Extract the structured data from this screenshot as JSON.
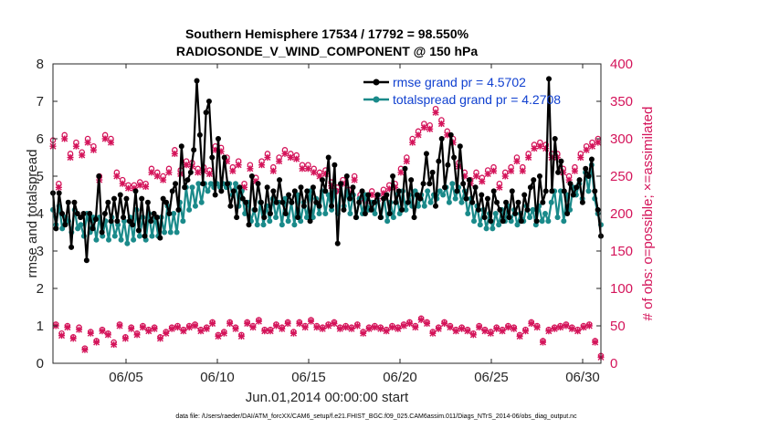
{
  "chart_data": {
    "type": "line",
    "title": "Southern Hemisphere 17534 / 17792 = 98.550%",
    "subtitle": "RADIOSONDE_V_WIND_COMPONENT @ 150 hPa",
    "xlabel": "Jun.01,2014 00:00:00 start",
    "ylabel_left": "rmse and totalspread",
    "ylabel_right": "# of obs: o=possible; ×=assimilated",
    "xlim": [
      1,
      31
    ],
    "ylim_left": [
      0,
      8
    ],
    "ylim_right": [
      0,
      400
    ],
    "x_ticks": [
      5,
      10,
      15,
      20,
      25,
      30
    ],
    "x_tick_labels": [
      "06/05",
      "06/10",
      "06/15",
      "06/20",
      "06/25",
      "06/30"
    ],
    "y_ticks_left": [
      "0",
      "1",
      "2",
      "3",
      "4",
      "5",
      "6",
      "7",
      "8"
    ],
    "y_ticks_right": [
      "0",
      "50",
      "100",
      "150",
      "200",
      "250",
      "300",
      "350",
      "400"
    ],
    "legend": [
      {
        "name": "rmse grand pr = 4.5702",
        "color": "#000000"
      },
      {
        "name": "totalspread grand pr = 4.2708",
        "color": "#1a8a8a"
      }
    ],
    "colors": {
      "rmse": "#000000",
      "spread": "#1a8a8a",
      "obs": "#d4145a"
    },
    "footnote": "data file: /Users/raeder/DAI/ATM_forcXX/CAM6_setup/f.e21.FHIST_BGC.f09_025.CAM6assim.011/Diags_NTrS_2014-06/obs_diag_output.nc",
    "rmse": [
      4.55,
      3.6,
      4.55,
      4.0,
      3.7,
      4.3,
      3.1,
      4.3,
      4.0,
      3.9,
      4.0,
      2.75,
      4.0,
      3.6,
      3.85,
      5.0,
      3.5,
      4.0,
      4.3,
      3.8,
      4.4,
      3.8,
      4.5,
      3.9,
      4.4,
      3.8,
      3.7,
      4.6,
      3.55,
      4.4,
      3.4,
      4.3,
      3.8,
      4.0,
      3.9,
      3.35,
      4.4,
      4.3,
      4.0,
      4.6,
      4.8,
      4.1,
      5.8,
      4.7,
      4.9,
      5.1,
      5.7,
      7.55,
      6.1,
      4.8,
      6.7,
      7.0,
      5.5,
      4.5,
      6.0,
      4.6,
      5.5,
      4.8,
      4.2,
      4.6,
      3.9,
      4.7,
      4.4,
      4.3,
      3.7,
      5.0,
      4.1,
      4.8,
      4.3,
      3.9,
      4.7,
      4.0,
      4.6,
      4.3,
      4.9,
      4.3,
      4.0,
      4.5,
      4.3,
      4.6,
      3.9,
      4.7,
      4.2,
      4.6,
      3.8,
      4.7,
      4.3,
      4.2,
      4.9,
      4.6,
      5.5,
      4.2,
      5.3,
      3.2,
      4.8,
      4.1,
      5.0,
      4.4,
      4.7,
      3.9,
      4.3,
      4.6,
      4.0,
      4.5,
      4.1,
      4.3,
      4.5,
      3.9,
      4.4,
      4.5,
      4.0,
      5.0,
      4.3,
      4.6,
      4.1,
      5.2,
      4.3,
      4.9,
      3.9,
      4.5,
      4.4,
      4.8,
      5.6,
      4.8,
      5.1,
      4.2,
      5.4,
      6.0,
      4.7,
      5.3,
      6.1,
      5.5,
      4.6,
      5.8,
      4.8,
      4.4,
      4.9,
      4.3,
      4.7,
      4.1,
      4.5,
      3.9,
      4.4,
      3.8,
      4.6,
      4.3,
      4.1,
      3.8,
      4.3,
      3.9,
      4.6,
      4.0,
      4.3,
      3.8,
      4.5,
      4.1,
      4.7,
      4.9,
      3.8,
      5.0,
      4.3,
      4.6,
      7.6,
      4.6,
      6.0,
      5.1,
      5.4,
      4.6,
      4.0,
      4.8,
      4.5,
      4.7,
      4.9,
      4.3,
      5.2,
      5.0,
      5.45,
      4.6,
      4.1,
      3.4
    ],
    "spread": [
      4.1,
      3.7,
      4.2,
      3.6,
      3.9,
      3.8,
      3.5,
      4.1,
      3.6,
      3.7,
      3.4,
      4.0,
      3.5,
      3.9,
      3.3,
      3.9,
      3.4,
      3.8,
      3.3,
      3.9,
      3.4,
      3.7,
      3.3,
      3.8,
      3.2,
      3.9,
      3.3,
      4.1,
      3.4,
      3.9,
      3.3,
      4.0,
      3.4,
      3.9,
      3.4,
      3.9,
      3.5,
      4.2,
      3.5,
      4.0,
      3.5,
      4.3,
      3.8,
      4.7,
      4.1,
      4.7,
      4.2,
      4.8,
      4.3,
      4.8,
      4.6,
      4.8,
      4.7,
      4.8,
      4.7,
      4.8,
      4.7,
      4.8,
      4.5,
      4.8,
      4.2,
      4.6,
      4.0,
      4.3,
      3.8,
      4.1,
      3.7,
      4.3,
      3.7,
      4.2,
      3.8,
      4.4,
      3.9,
      4.3,
      3.7,
      4.4,
      3.8,
      4.3,
      3.7,
      4.5,
      3.8,
      4.3,
      3.9,
      4.6,
      3.9,
      4.4,
      4.0,
      4.6,
      4.0,
      4.5,
      4.1,
      4.6,
      4.0,
      4.8,
      4.2,
      4.6,
      4.0,
      4.5,
      3.9,
      4.4,
      4.0,
      4.5,
      4.1,
      4.3,
      4.0,
      4.5,
      3.9,
      4.4,
      3.8,
      4.3,
      3.9,
      4.5,
      4.0,
      4.6,
      4.1,
      4.5,
      4.2,
      4.6,
      4.2,
      4.5,
      4.2,
      4.6,
      4.3,
      4.5,
      4.4,
      4.6,
      4.5,
      4.7,
      4.3,
      4.8,
      4.4,
      4.7,
      4.3,
      4.6,
      4.0,
      4.4,
      3.8,
      4.2,
      3.7,
      4.1,
      3.6,
      4.0,
      3.6,
      4.0,
      3.7,
      4.1,
      3.8,
      4.2,
      3.8,
      4.1,
      3.7,
      4.0,
      3.8,
      4.2,
      3.9,
      4.1,
      3.7,
      4.2,
      3.8,
      4.0,
      3.8,
      4.3,
      4.6,
      3.9,
      4.6,
      3.8,
      4.5,
      4.1,
      4.7,
      4.5,
      4.8,
      4.4,
      5.1,
      4.6,
      5.3,
      4.4,
      4.0,
      3.7
    ],
    "obs_possible": [
      298,
      52,
      240,
      40,
      305,
      50,
      280,
      35,
      295,
      48,
      282,
      20,
      300,
      42,
      290,
      30,
      250,
      45,
      305,
      40,
      300,
      28,
      255,
      52,
      245,
      35,
      238,
      48,
      238,
      40,
      242,
      50,
      240,
      45,
      260,
      48,
      255,
      35,
      250,
      42,
      260,
      48,
      285,
      50,
      258,
      45,
      270,
      50,
      268,
      52,
      260,
      45,
      262,
      48,
      258,
      55,
      290,
      38,
      288,
      42,
      275,
      55,
      262,
      48,
      270,
      38,
      240,
      55,
      265,
      50,
      248,
      58,
      270,
      45,
      280,
      45,
      262,
      52,
      275,
      48,
      285,
      55,
      280,
      42,
      278,
      55,
      265,
      50,
      265,
      58,
      260,
      50,
      255,
      48,
      258,
      52,
      242,
      55,
      235,
      48,
      245,
      50,
      232,
      48,
      250,
      52,
      225,
      42,
      222,
      48,
      230,
      50,
      225,
      48,
      232,
      45,
      238,
      50,
      240,
      48,
      260,
      52,
      275,
      55,
      300,
      50,
      310,
      60,
      320,
      55,
      318,
      42,
      340,
      48,
      325,
      55,
      310,
      50,
      300,
      45,
      268,
      48,
      255,
      45,
      245,
      40,
      255,
      50,
      248,
      45,
      258,
      42,
      262,
      48,
      240,
      45,
      255,
      50,
      262,
      48,
      275,
      38,
      262,
      45,
      280,
      55,
      292,
      50,
      295,
      30,
      292,
      45,
      280,
      48,
      280,
      50,
      260,
      52,
      250,
      48,
      262,
      45,
      280,
      50,
      290,
      52,
      295,
      30,
      300,
      10
    ],
    "obs_assim": [
      290,
      50,
      235,
      37,
      300,
      48,
      275,
      33,
      290,
      45,
      278,
      18,
      295,
      40,
      285,
      28,
      245,
      43,
      300,
      38,
      295,
      25,
      250,
      50,
      240,
      33,
      234,
      46,
      234,
      38,
      238,
      48,
      236,
      43,
      255,
      46,
      250,
      33,
      245,
      40,
      255,
      46,
      280,
      48,
      253,
      43,
      265,
      48,
      263,
      50,
      255,
      43,
      257,
      46,
      253,
      53,
      285,
      36,
      283,
      40,
      270,
      53,
      257,
      46,
      265,
      36,
      235,
      53,
      260,
      48,
      243,
      56,
      265,
      43,
      275,
      43,
      257,
      50,
      270,
      46,
      280,
      53,
      275,
      40,
      273,
      53,
      260,
      48,
      260,
      56,
      255,
      48,
      250,
      46,
      253,
      50,
      237,
      53,
      230,
      46,
      240,
      48,
      227,
      46,
      245,
      50,
      220,
      40,
      217,
      46,
      225,
      48,
      220,
      46,
      227,
      43,
      233,
      48,
      235,
      46,
      255,
      50,
      270,
      53,
      295,
      48,
      305,
      58,
      315,
      53,
      313,
      40,
      335,
      46,
      320,
      53,
      305,
      48,
      295,
      43,
      263,
      46,
      250,
      43,
      240,
      38,
      250,
      48,
      243,
      43,
      253,
      40,
      257,
      46,
      235,
      43,
      250,
      48,
      257,
      46,
      270,
      36,
      257,
      43,
      275,
      53,
      287,
      48,
      290,
      28,
      287,
      43,
      275,
      46,
      275,
      48,
      255,
      50,
      245,
      46,
      257,
      43,
      275,
      48,
      285,
      50,
      290,
      28,
      295,
      8
    ]
  }
}
